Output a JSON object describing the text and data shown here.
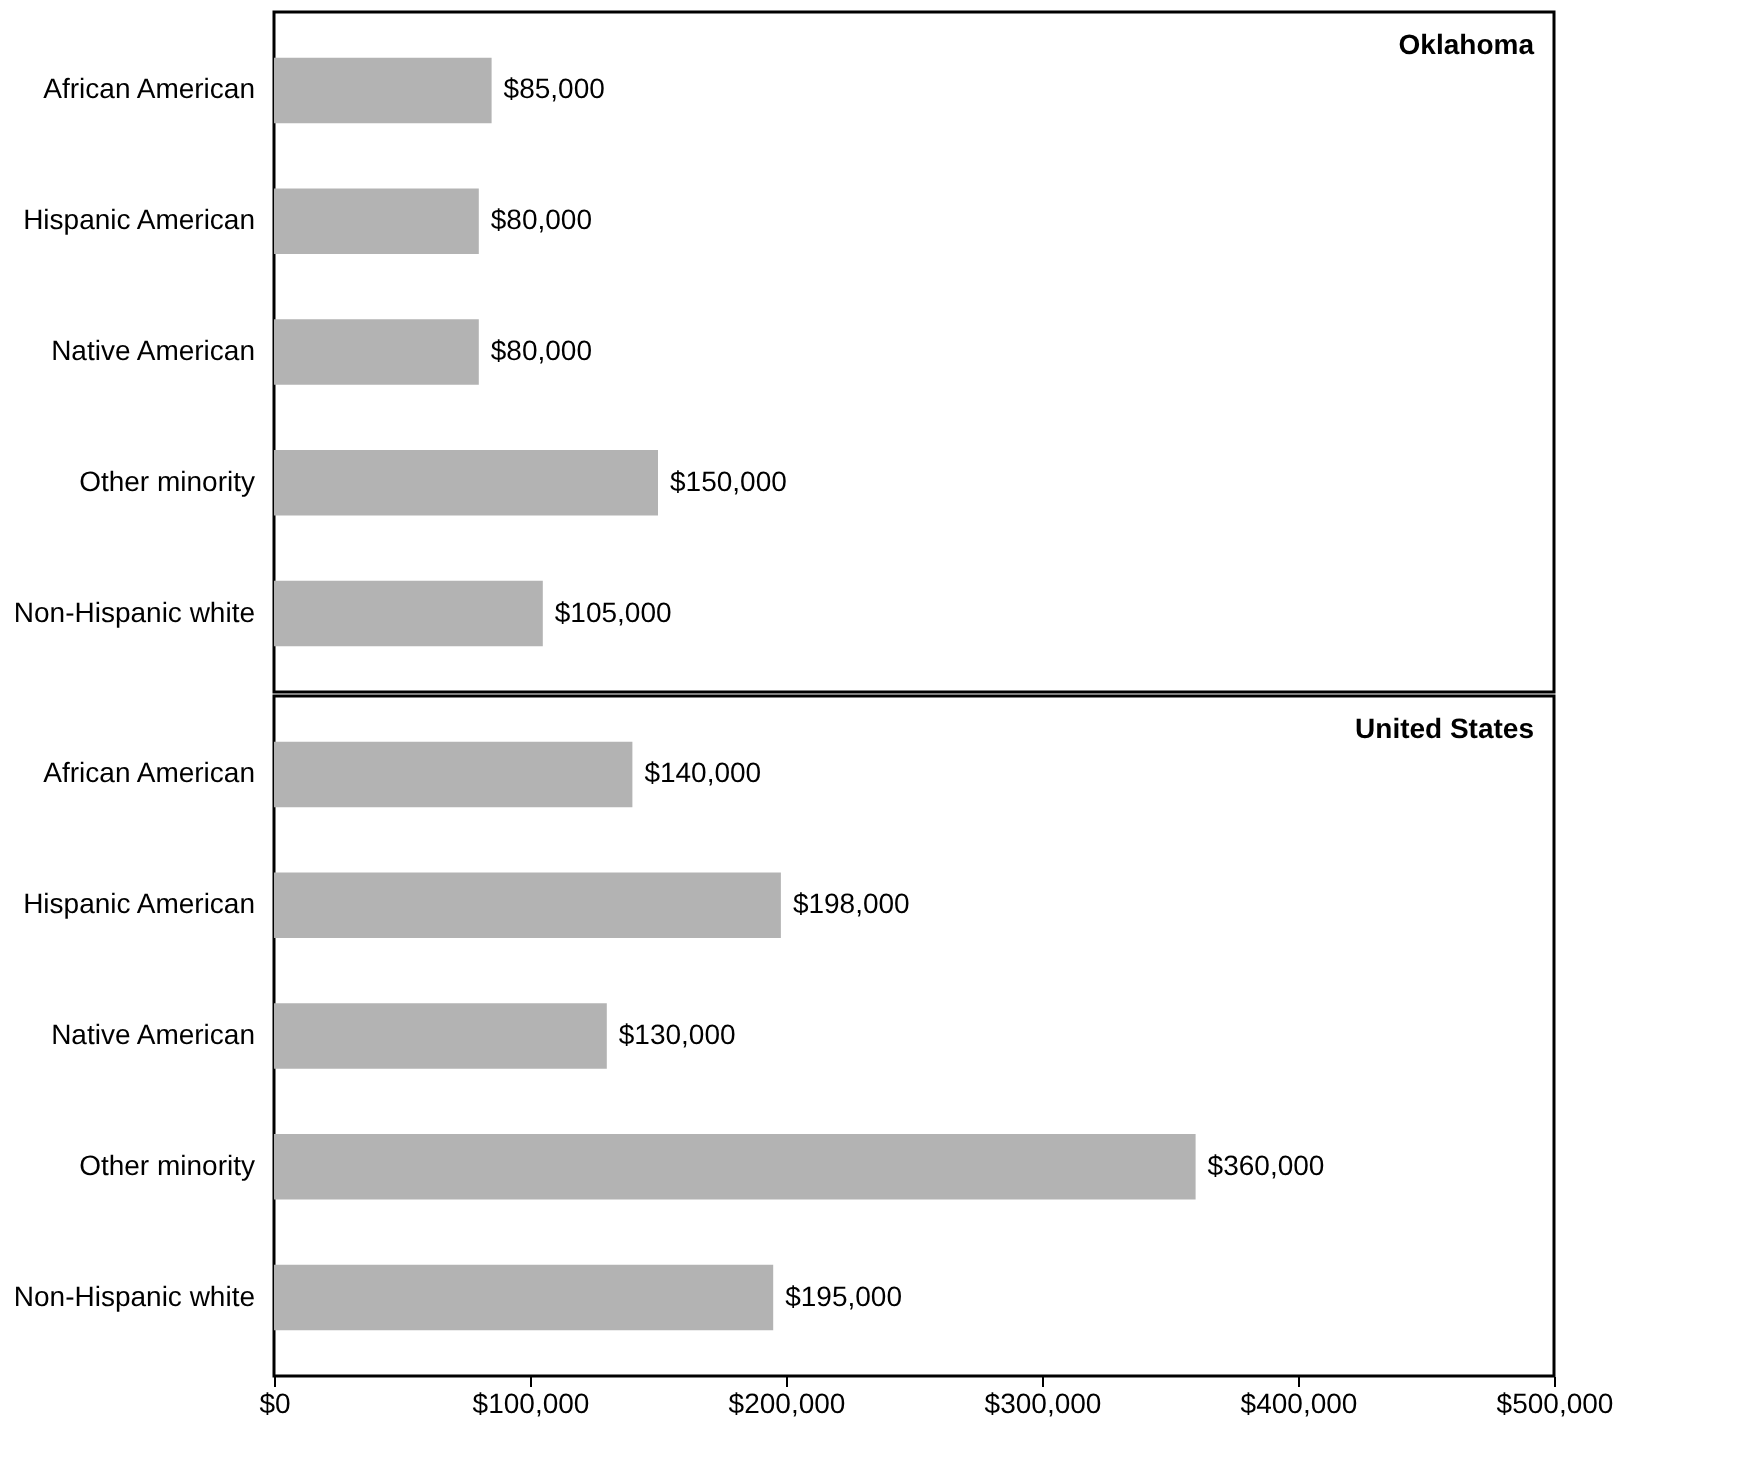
{
  "chart_data": [
    {
      "type": "bar",
      "orientation": "horizontal",
      "title": "Oklahoma",
      "categories": [
        "African American",
        "Hispanic American",
        "Native American",
        "Other minority",
        "Non-Hispanic white"
      ],
      "values": [
        85000,
        80000,
        80000,
        150000,
        105000
      ],
      "value_labels": [
        "$85,000",
        "$80,000",
        "$80,000",
        "$150,000",
        "$105,000"
      ],
      "color": "#b3b3b3",
      "xlim": [
        0,
        500000
      ],
      "tick_labels": "y",
      "grid": false
    },
    {
      "type": "bar",
      "orientation": "horizontal",
      "title": "United States",
      "categories": [
        "African American",
        "Hispanic American",
        "Native American",
        "Other minority",
        "Non-Hispanic white"
      ],
      "values": [
        140000,
        198000,
        130000,
        360000,
        195000
      ],
      "value_labels": [
        "$140,000",
        "$198,000",
        "$130,000",
        "$360,000",
        "$195,000"
      ],
      "color": "#b3b3b3",
      "xlim": [
        0,
        500000
      ],
      "xticks": [
        {
          "value": 0,
          "label": "$0"
        },
        {
          "value": 100000,
          "label": "$100,000"
        },
        {
          "value": 200000,
          "label": "$200,000"
        },
        {
          "value": 300000,
          "label": "$300,000"
        },
        {
          "value": 400000,
          "label": "$400,000"
        },
        {
          "value": 500000,
          "label": "$500,000"
        }
      ],
      "grid": false
    }
  ]
}
